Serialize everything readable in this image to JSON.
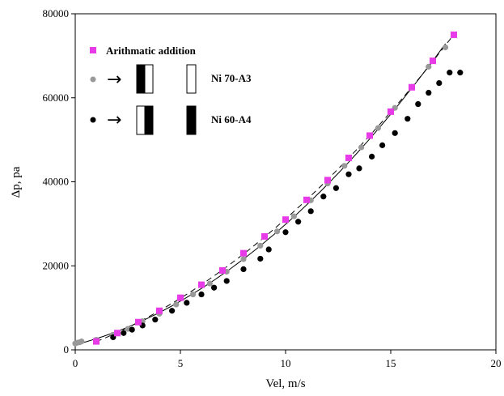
{
  "chart_data": {
    "type": "scatter",
    "xlabel": "Vel, m/s",
    "ylabel": "Δp, pa",
    "xlim": [
      0,
      20
    ],
    "ylim": [
      0,
      80000
    ],
    "xticks": [
      "0",
      "5",
      "10",
      "15",
      "20"
    ],
    "yticks": [
      "0",
      "20000",
      "40000",
      "60000",
      "80000"
    ],
    "grid": false,
    "legend_position": "top-left",
    "colors": {
      "series1": "#e63be6",
      "series2": "#999999",
      "series3": "#000000"
    },
    "series": [
      {
        "name": "Arithmatic addition",
        "marker": "square",
        "line": "dashed",
        "x": [
          1,
          2,
          3,
          4,
          5,
          6,
          7,
          8,
          9,
          10,
          11,
          12,
          13,
          14,
          15,
          16,
          17,
          18
        ],
        "y": [
          2000,
          4000,
          6600,
          9300,
          12400,
          15500,
          18900,
          23000,
          27000,
          31000,
          35700,
          40400,
          45700,
          51000,
          56700,
          62500,
          68800,
          75000
        ]
      },
      {
        "name": "Ni 70-A3",
        "marker": "circle",
        "line": "solid",
        "x": [
          0,
          0.1,
          0.2,
          0.3,
          1,
          1.8,
          2.5,
          3.2,
          4,
          4.8,
          5.6,
          6.4,
          7.2,
          8,
          8.8,
          9.6,
          10.4,
          11.2,
          12,
          12.8,
          13.6,
          14.4,
          15.2,
          16,
          16.8,
          17.6
        ],
        "y": [
          1500,
          1700,
          1800,
          2000,
          2400,
          3600,
          5000,
          6800,
          8600,
          10800,
          13200,
          15800,
          18600,
          21600,
          24800,
          28200,
          31800,
          35600,
          39600,
          43800,
          48200,
          52800,
          57600,
          62600,
          67400,
          72000
        ]
      },
      {
        "name": "Ni 60-A4",
        "marker": "circle",
        "line": "none",
        "x": [
          1.8,
          2.3,
          2.7,
          3.2,
          3.8,
          4.6,
          5.3,
          6,
          6.6,
          7.2,
          8,
          8.8,
          9.2,
          10,
          10.6,
          11.2,
          11.8,
          12.4,
          13,
          13.5,
          14.1,
          14.6,
          15.2,
          15.8,
          16.3,
          16.8,
          17.3,
          17.8,
          18.3
        ],
        "y": [
          3000,
          4000,
          4800,
          5800,
          7200,
          9300,
          11200,
          13200,
          14800,
          16400,
          19200,
          21700,
          23900,
          28000,
          30500,
          33000,
          36500,
          38500,
          41800,
          43200,
          46000,
          48700,
          51600,
          55000,
          58500,
          61200,
          63500,
          66000,
          66000
        ]
      }
    ]
  },
  "legend": {
    "entries": [
      "Arithmatic addition",
      "Ni 70-A3",
      "Ni 60-A4"
    ],
    "arrow": "→"
  }
}
